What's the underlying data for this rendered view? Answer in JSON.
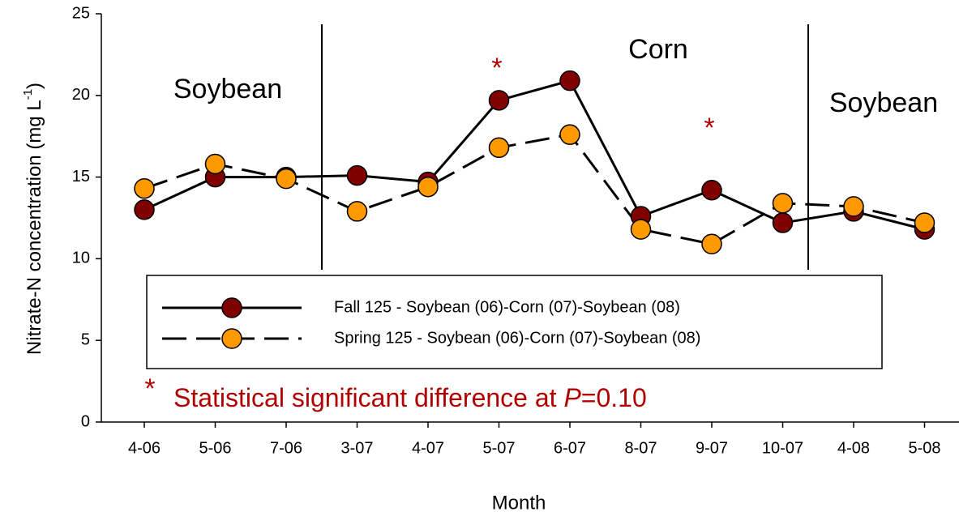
{
  "chart_data": {
    "type": "line",
    "xlabel": "Month",
    "ylabel": [
      "Nitrate-N concentration (mg L",
      "-1",
      ")"
    ],
    "categories": [
      "4-06",
      "5-06",
      "7-06",
      "3-07",
      "4-07",
      "5-07",
      "6-07",
      "8-07",
      "9-07",
      "10-07",
      "4-08",
      "5-08"
    ],
    "series": [
      {
        "name": "Fall 125 - Soybean (06)-Corn (07)-Soybean (08)",
        "color": "#800000",
        "dash": "solid",
        "values": [
          13.0,
          15.0,
          15.0,
          15.1,
          14.7,
          19.7,
          20.9,
          12.6,
          14.2,
          12.2,
          12.9,
          11.8
        ]
      },
      {
        "name": "Spring 125 - Soybean (06)-Corn (07)-Soybean (08)",
        "color": "#ff9900",
        "dash": "dashed",
        "values": [
          14.3,
          15.8,
          14.9,
          12.9,
          14.4,
          16.8,
          17.6,
          11.8,
          10.9,
          13.4,
          13.2,
          12.2
        ]
      }
    ],
    "ylim": [
      0,
      25
    ],
    "yticks": [
      0,
      5,
      10,
      15,
      20,
      25
    ],
    "grid": false,
    "annotations": {
      "phase1": "Soybean",
      "phase2": "Corn",
      "phase3": "Soybean",
      "star1": "*",
      "star2": "*",
      "note_star": "*",
      "note": "Statistical significant difference at ",
      "note_p": "P",
      "note_end": "=0.10"
    }
  }
}
